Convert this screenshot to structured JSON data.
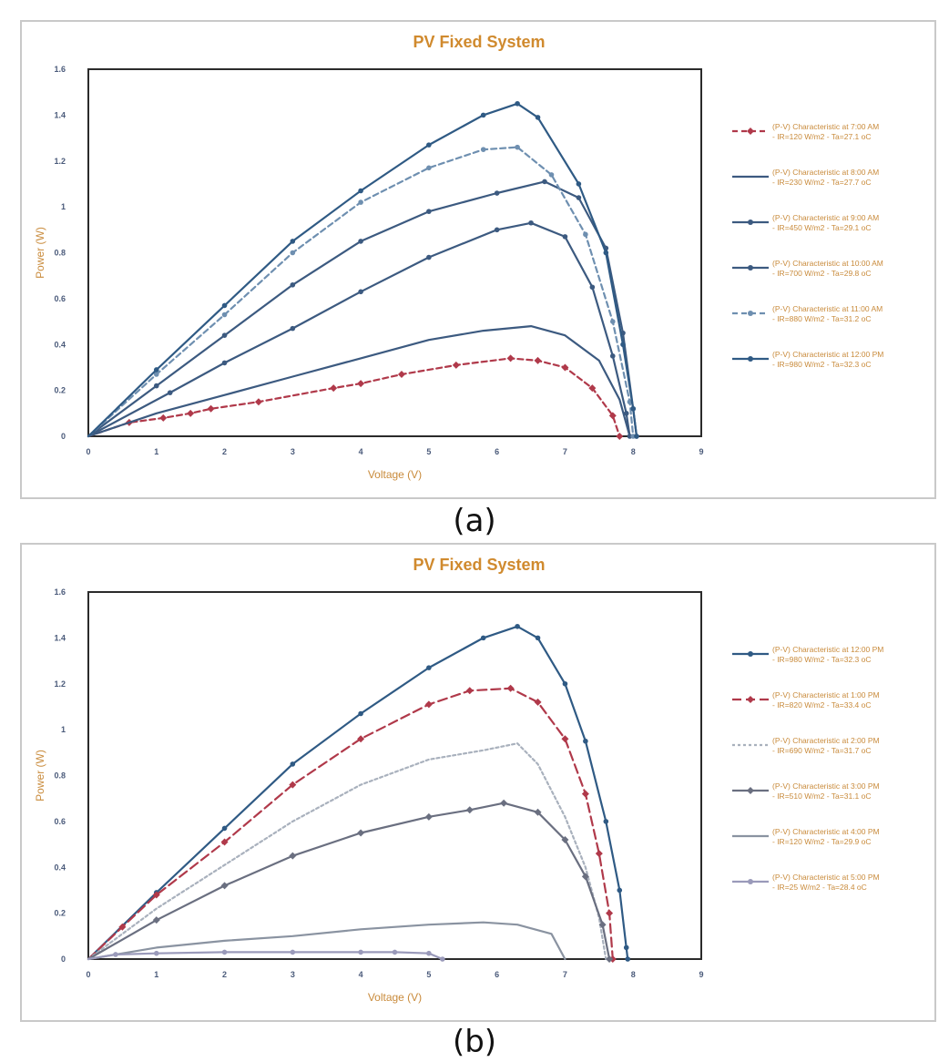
{
  "captions": [
    "(a)",
    "(b)"
  ],
  "colors": {
    "axis_text": "#c98b3c",
    "title": "#d08a2e",
    "dark_blue": "#3c5a80",
    "red": "#b0394a",
    "gray_light": "#a9b1bd",
    "gray_mid": "#8a93a1",
    "gray_purple": "#9a9aba"
  },
  "chart_data": [
    {
      "type": "line",
      "title": "PV Fixed System",
      "xlabel": "Voltage (V)",
      "ylabel": "Power (W)",
      "xlim": [
        0,
        9
      ],
      "ylim": [
        0,
        1.6
      ],
      "x_ticks": [
        "0",
        "1",
        "2",
        "3",
        "4",
        "5",
        "6",
        "7",
        "8",
        "9"
      ],
      "y_ticks": [
        "0",
        "0.2",
        "0.4",
        "0.6",
        "0.8",
        "1",
        "1.2",
        "1.4",
        "1.6"
      ],
      "legend_position": "right",
      "grid": false,
      "series": [
        {
          "name": "(P-V) Characteristic at 7:00 AM - IR=120 W/m2 - Ta=27.1 oC",
          "color": "#b0394a",
          "dash": "6,4",
          "marker": "diamond",
          "points": [
            [
              0,
              0
            ],
            [
              0.6,
              0.06
            ],
            [
              1.1,
              0.08
            ],
            [
              1.5,
              0.1
            ],
            [
              1.8,
              0.12
            ],
            [
              2.5,
              0.15
            ],
            [
              3.6,
              0.21
            ],
            [
              4.0,
              0.23
            ],
            [
              4.6,
              0.27
            ],
            [
              5.4,
              0.31
            ],
            [
              6.2,
              0.34
            ],
            [
              6.6,
              0.33
            ],
            [
              7.0,
              0.3
            ],
            [
              7.4,
              0.21
            ],
            [
              7.7,
              0.09
            ],
            [
              7.8,
              0
            ]
          ]
        },
        {
          "name": "(P-V) Characteristic at 8:00 AM - IR=230 W/m2 - Ta=27.7 oC",
          "color": "#3c5a80",
          "dash": "",
          "marker": "none",
          "points": [
            [
              0,
              0
            ],
            [
              1.0,
              0.1
            ],
            [
              2.0,
              0.18
            ],
            [
              3.0,
              0.26
            ],
            [
              4.0,
              0.34
            ],
            [
              5.0,
              0.42
            ],
            [
              5.8,
              0.46
            ],
            [
              6.5,
              0.48
            ],
            [
              7.0,
              0.44
            ],
            [
              7.5,
              0.33
            ],
            [
              7.8,
              0.16
            ],
            [
              7.95,
              0
            ]
          ]
        },
        {
          "name": "(P-V) Characteristic at 9:00 AM - IR=450 W/m2 - Ta=29.1 oC",
          "color": "#3c5a80",
          "dash": "",
          "marker": "circle",
          "points": [
            [
              0,
              0
            ],
            [
              1.2,
              0.19
            ],
            [
              2.0,
              0.32
            ],
            [
              3.0,
              0.47
            ],
            [
              4.0,
              0.63
            ],
            [
              5.0,
              0.78
            ],
            [
              6.0,
              0.9
            ],
            [
              6.5,
              0.93
            ],
            [
              7.0,
              0.87
            ],
            [
              7.4,
              0.65
            ],
            [
              7.7,
              0.35
            ],
            [
              7.9,
              0.1
            ],
            [
              7.95,
              0
            ]
          ]
        },
        {
          "name": "(P-V) Characteristic at 10:00 AM - IR=700 W/m2 - Ta=29.8 oC",
          "color": "#3c5a80",
          "dash": "",
          "marker": "circle",
          "points": [
            [
              0,
              0
            ],
            [
              1.0,
              0.22
            ],
            [
              2.0,
              0.44
            ],
            [
              3.0,
              0.66
            ],
            [
              4.0,
              0.85
            ],
            [
              5.0,
              0.98
            ],
            [
              6.0,
              1.06
            ],
            [
              6.7,
              1.11
            ],
            [
              7.2,
              1.04
            ],
            [
              7.6,
              0.82
            ],
            [
              7.85,
              0.45
            ],
            [
              8.0,
              0.12
            ],
            [
              8.05,
              0
            ]
          ]
        },
        {
          "name": "(P-V) Characteristic at 11:00 AM - IR=880 W/m2 - Ta=31.2 oC",
          "color": "#6e8fb0",
          "dash": "6,4",
          "marker": "circle",
          "points": [
            [
              0,
              0
            ],
            [
              1.0,
              0.27
            ],
            [
              2.0,
              0.53
            ],
            [
              3.0,
              0.8
            ],
            [
              4.0,
              1.02
            ],
            [
              5.0,
              1.17
            ],
            [
              5.8,
              1.25
            ],
            [
              6.3,
              1.26
            ],
            [
              6.8,
              1.14
            ],
            [
              7.3,
              0.88
            ],
            [
              7.7,
              0.5
            ],
            [
              7.95,
              0.15
            ],
            [
              8.0,
              0
            ]
          ]
        },
        {
          "name": "(P-V) Characteristic at 12:00 PM - IR=980 W/m2 - Ta=32.3 oC",
          "color": "#2f5a84",
          "dash": "",
          "marker": "circle",
          "points": [
            [
              0,
              0
            ],
            [
              1.0,
              0.29
            ],
            [
              2.0,
              0.57
            ],
            [
              3.0,
              0.85
            ],
            [
              4.0,
              1.07
            ],
            [
              5.0,
              1.27
            ],
            [
              5.8,
              1.4
            ],
            [
              6.3,
              1.45
            ],
            [
              6.6,
              1.39
            ],
            [
              7.2,
              1.1
            ],
            [
              7.6,
              0.8
            ],
            [
              7.85,
              0.4
            ],
            [
              8.0,
              0.12
            ],
            [
              8.05,
              0
            ]
          ]
        }
      ]
    },
    {
      "type": "line",
      "title": "PV Fixed System",
      "xlabel": "Voltage (V)",
      "ylabel": "Power (W)",
      "xlim": [
        0,
        9
      ],
      "ylim": [
        0,
        1.6
      ],
      "x_ticks": [
        "0",
        "1",
        "2",
        "3",
        "4",
        "5",
        "6",
        "7",
        "8",
        "9"
      ],
      "y_ticks": [
        "0",
        "0.2",
        "0.4",
        "0.6",
        "0.8",
        "1",
        "1.2",
        "1.4",
        "1.6"
      ],
      "legend_position": "right",
      "grid": false,
      "series": [
        {
          "name": "(P-V) Characteristic at 12:00 PM - IR=980 W/m2 - Ta=32.3 oC",
          "color": "#2f5a84",
          "dash": "",
          "marker": "circle",
          "points": [
            [
              0,
              0
            ],
            [
              1.0,
              0.29
            ],
            [
              2.0,
              0.57
            ],
            [
              3.0,
              0.85
            ],
            [
              4.0,
              1.07
            ],
            [
              5.0,
              1.27
            ],
            [
              5.8,
              1.4
            ],
            [
              6.3,
              1.45
            ],
            [
              6.6,
              1.4
            ],
            [
              7.0,
              1.2
            ],
            [
              7.3,
              0.95
            ],
            [
              7.6,
              0.6
            ],
            [
              7.8,
              0.3
            ],
            [
              7.9,
              0.05
            ],
            [
              7.92,
              0
            ]
          ]
        },
        {
          "name": "(P-V) Characteristic at 1:00 PM - IR=820 W/m2 - Ta=33.4 oC",
          "color": "#b0394a",
          "dash": "10,5",
          "marker": "diamond",
          "points": [
            [
              0,
              0
            ],
            [
              0.5,
              0.14
            ],
            [
              1.0,
              0.28
            ],
            [
              2.0,
              0.51
            ],
            [
              3.0,
              0.76
            ],
            [
              4.0,
              0.96
            ],
            [
              5.0,
              1.11
            ],
            [
              5.6,
              1.17
            ],
            [
              6.2,
              1.18
            ],
            [
              6.6,
              1.12
            ],
            [
              7.0,
              0.96
            ],
            [
              7.3,
              0.72
            ],
            [
              7.5,
              0.46
            ],
            [
              7.65,
              0.2
            ],
            [
              7.7,
              0
            ]
          ]
        },
        {
          "name": "(P-V) Characteristic at 2:00 PM - IR=690 W/m2 - Ta=31.7 oC",
          "color": "#a9b1bd",
          "dash": "3,3",
          "marker": "none",
          "points": [
            [
              0,
              0
            ],
            [
              1.0,
              0.22
            ],
            [
              2.0,
              0.41
            ],
            [
              3.0,
              0.6
            ],
            [
              4.0,
              0.76
            ],
            [
              5.0,
              0.87
            ],
            [
              5.8,
              0.91
            ],
            [
              6.3,
              0.94
            ],
            [
              6.6,
              0.85
            ],
            [
              7.0,
              0.62
            ],
            [
              7.3,
              0.4
            ],
            [
              7.5,
              0.18
            ],
            [
              7.6,
              0
            ]
          ]
        },
        {
          "name": "(P-V) Characteristic at 3:00 PM - IR=510 W/m2 - Ta=31.1 oC",
          "color": "#6a6f80",
          "dash": "",
          "marker": "diamond",
          "points": [
            [
              0,
              0
            ],
            [
              1.0,
              0.17
            ],
            [
              2.0,
              0.32
            ],
            [
              3.0,
              0.45
            ],
            [
              4.0,
              0.55
            ],
            [
              5.0,
              0.62
            ],
            [
              5.6,
              0.65
            ],
            [
              6.1,
              0.68
            ],
            [
              6.6,
              0.64
            ],
            [
              7.0,
              0.52
            ],
            [
              7.3,
              0.36
            ],
            [
              7.55,
              0.15
            ],
            [
              7.65,
              0
            ]
          ]
        },
        {
          "name": "(P-V) Characteristic at 4:00 PM - IR=120 W/m2 - Ta=29.9 oC",
          "color": "#8a93a1",
          "dash": "",
          "marker": "none",
          "points": [
            [
              0,
              0
            ],
            [
              1.0,
              0.05
            ],
            [
              2.0,
              0.08
            ],
            [
              3.0,
              0.1
            ],
            [
              4.0,
              0.13
            ],
            [
              5.0,
              0.15
            ],
            [
              5.8,
              0.16
            ],
            [
              6.3,
              0.15
            ],
            [
              6.8,
              0.11
            ],
            [
              7.0,
              0
            ]
          ]
        },
        {
          "name": "(P-V) Characteristic at 5:00 PM - IR=25 W/m2 - Ta=28.4 oC",
          "color": "#9a9aba",
          "dash": "",
          "marker": "circle",
          "points": [
            [
              0,
              0
            ],
            [
              0.4,
              0.02
            ],
            [
              1.0,
              0.025
            ],
            [
              2.0,
              0.03
            ],
            [
              3.0,
              0.03
            ],
            [
              4.0,
              0.03
            ],
            [
              4.5,
              0.03
            ],
            [
              5.0,
              0.025
            ],
            [
              5.2,
              0
            ]
          ]
        }
      ]
    }
  ]
}
